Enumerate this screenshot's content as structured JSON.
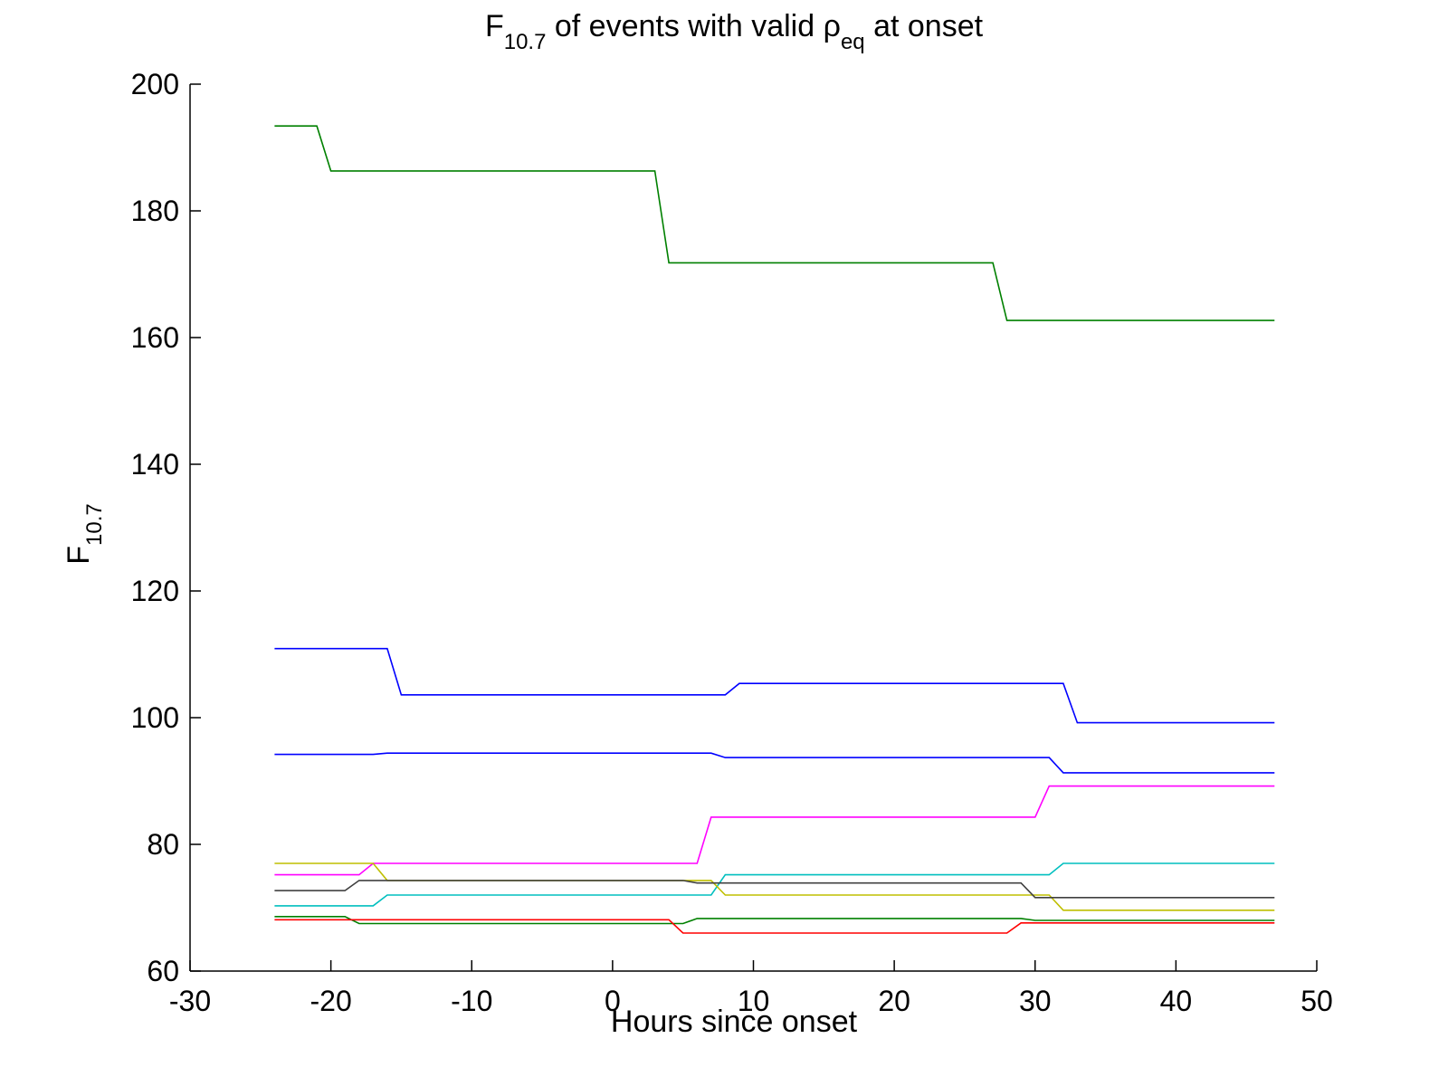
{
  "chart_data": {
    "type": "line",
    "title": {
      "prefix": "F",
      "prefix_sub": "10.7",
      "middle": " of events with valid ",
      "symbol": "ρ",
      "symbol_sub": "eq",
      "suffix": " at onset"
    },
    "xlabel": "Hours since onset",
    "ylabel": {
      "main": "F",
      "sub": "10.7"
    },
    "xlim": [
      -30,
      50
    ],
    "ylim": [
      60,
      200
    ],
    "xticks": [
      -30,
      -20,
      -10,
      0,
      10,
      20,
      30,
      40,
      50
    ],
    "yticks": [
      60,
      80,
      100,
      120,
      140,
      160,
      180,
      200
    ],
    "grid": false,
    "legend": "none",
    "series": [
      {
        "color": "#008000",
        "points": [
          [
            -24,
            193.4
          ],
          [
            -21,
            193.4
          ],
          [
            -20,
            186.3
          ],
          [
            3,
            186.3
          ],
          [
            4,
            171.8
          ],
          [
            27,
            171.8
          ],
          [
            28,
            162.7
          ],
          [
            47,
            162.7
          ]
        ]
      },
      {
        "color": "#0000ff",
        "points": [
          [
            -24,
            110.9
          ],
          [
            -16,
            110.9
          ],
          [
            -15,
            103.6
          ],
          [
            8,
            103.6
          ],
          [
            9,
            105.4
          ],
          [
            32,
            105.4
          ],
          [
            33,
            99.2
          ],
          [
            47,
            99.2
          ]
        ]
      },
      {
        "color": "#0000ff",
        "points": [
          [
            -24,
            94.2
          ],
          [
            -17,
            94.2
          ],
          [
            -16,
            94.4
          ],
          [
            7,
            94.4
          ],
          [
            8,
            93.7
          ],
          [
            31,
            93.7
          ],
          [
            32,
            91.3
          ],
          [
            47,
            91.3
          ]
        ]
      },
      {
        "color": "#ff00ff",
        "points": [
          [
            -24,
            75.2
          ],
          [
            -18,
            75.2
          ],
          [
            -17,
            77.0
          ],
          [
            6,
            77.0
          ],
          [
            7,
            84.3
          ],
          [
            30,
            84.3
          ],
          [
            31,
            89.2
          ],
          [
            47,
            89.2
          ]
        ]
      },
      {
        "color": "#00bfbf",
        "points": [
          [
            -24,
            70.3
          ],
          [
            -17,
            70.3
          ],
          [
            -16,
            72.0
          ],
          [
            7,
            72.0
          ],
          [
            8,
            75.2
          ],
          [
            31,
            75.2
          ],
          [
            32,
            77.0
          ],
          [
            47,
            77.0
          ]
        ]
      },
      {
        "color": "#bfbf00",
        "points": [
          [
            -24,
            77.0
          ],
          [
            -17,
            77.0
          ],
          [
            -16,
            74.3
          ],
          [
            7,
            74.3
          ],
          [
            8,
            72.0
          ],
          [
            31,
            72.0
          ],
          [
            32,
            69.6
          ],
          [
            47,
            69.6
          ]
        ]
      },
      {
        "color": "#404040",
        "points": [
          [
            -24,
            72.7
          ],
          [
            -19,
            72.7
          ],
          [
            -18,
            74.3
          ],
          [
            5,
            74.3
          ],
          [
            6,
            73.9
          ],
          [
            29,
            73.9
          ],
          [
            30,
            71.6
          ],
          [
            47,
            71.6
          ]
        ]
      },
      {
        "color": "#008000",
        "points": [
          [
            -24,
            68.6
          ],
          [
            -19,
            68.6
          ],
          [
            -18,
            67.5
          ],
          [
            5,
            67.5
          ],
          [
            6,
            68.3
          ],
          [
            29,
            68.3
          ],
          [
            30,
            68.0
          ],
          [
            47,
            68.0
          ]
        ]
      },
      {
        "color": "#ff0000",
        "points": [
          [
            -24,
            68.1
          ],
          [
            4,
            68.1
          ],
          [
            5,
            66.0
          ],
          [
            28,
            66.0
          ],
          [
            29,
            67.6
          ],
          [
            47,
            67.6
          ]
        ]
      }
    ]
  }
}
